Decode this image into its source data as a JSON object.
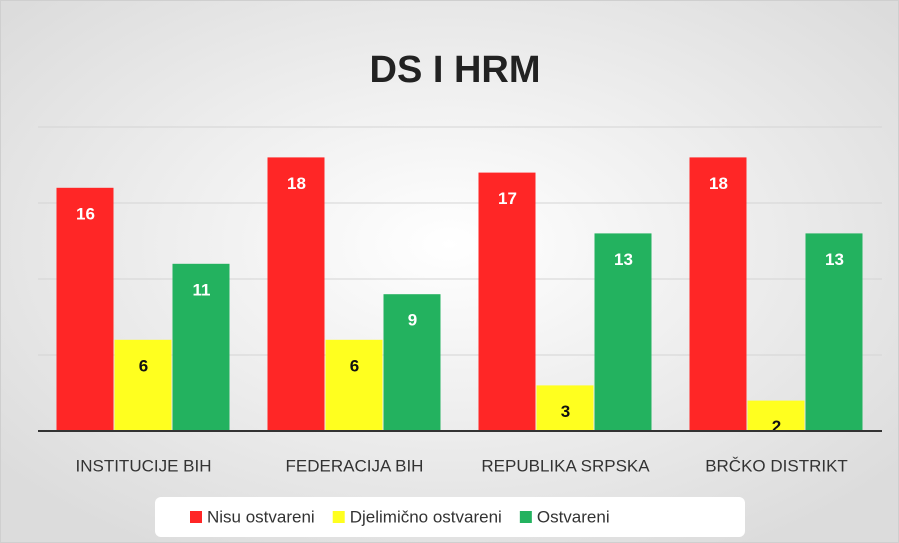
{
  "chart_data": {
    "type": "bar",
    "title": "DS I HRM",
    "categories": [
      "INSTITUCIJE BIH",
      "FEDERACIJA BIH",
      "REPUBLIKA SRPSKA",
      "BRČKO DISTRIKT"
    ],
    "series": [
      {
        "name": "Nisu ostvareni",
        "color": "#ff2626",
        "values": [
          16,
          18,
          17,
          18
        ]
      },
      {
        "name": "Djelimično ostvareni",
        "color": "#ffff1f",
        "values": [
          6,
          6,
          3,
          2
        ]
      },
      {
        "name": "Ostvareni",
        "color": "#23b25f",
        "values": [
          11,
          9,
          13,
          13
        ]
      }
    ],
    "ylim": [
      0,
      20
    ],
    "yticks": [
      0,
      5,
      10,
      15,
      20
    ],
    "grid": true,
    "legend": "bottom"
  }
}
